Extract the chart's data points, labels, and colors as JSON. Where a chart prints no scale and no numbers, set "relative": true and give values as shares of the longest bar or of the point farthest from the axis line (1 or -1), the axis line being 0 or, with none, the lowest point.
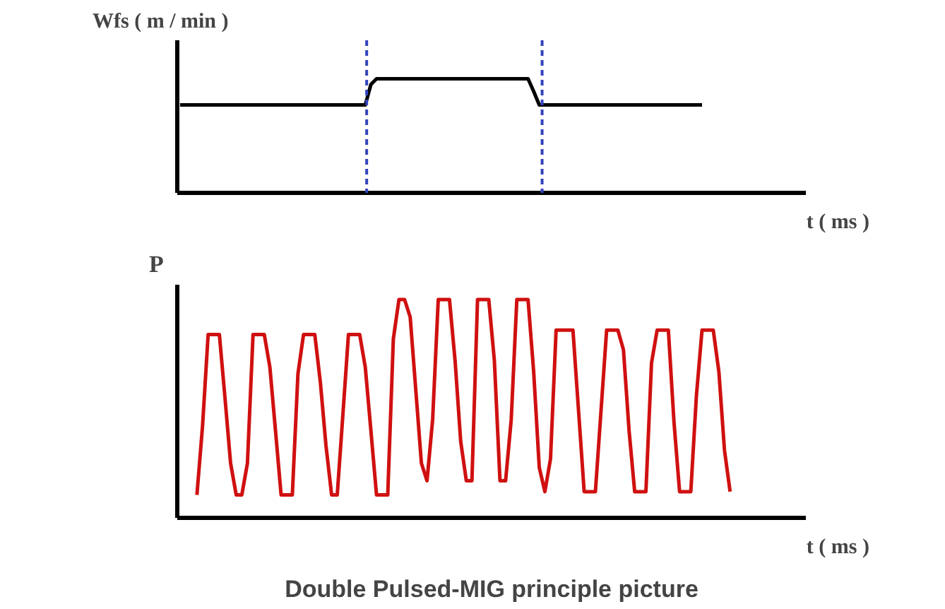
{
  "chart_data": [
    {
      "type": "line",
      "relative": true,
      "ylabel": "Wfs ( m / min )",
      "xlabel": "t ( ms )",
      "tick_labels": false,
      "categories": [
        null,
        null,
        null,
        null,
        null,
        null,
        null,
        null,
        null,
        null,
        null,
        null,
        null,
        null,
        null,
        null,
        null,
        null,
        null,
        null,
        null,
        null,
        null,
        null,
        null,
        null,
        null,
        null,
        null,
        null,
        null,
        null,
        null,
        null,
        null,
        null,
        null,
        null,
        null,
        null,
        null,
        null,
        null,
        null,
        null,
        null,
        null,
        null,
        null,
        null,
        null,
        null,
        null,
        null,
        null,
        null,
        null,
        null,
        null,
        null,
        null,
        null,
        null,
        null,
        null,
        null,
        null,
        null,
        null,
        null,
        null,
        null,
        null,
        null,
        null,
        null,
        null,
        null,
        null,
        null,
        null,
        null,
        null,
        null,
        null,
        null,
        null,
        null,
        null,
        null,
        null,
        null,
        null,
        null,
        null,
        null,
        null,
        null,
        null,
        null,
        null,
        null,
        null,
        null,
        null,
        null,
        null,
        null,
        null,
        null,
        null,
        null
      ],
      "series": [
        {
          "color": "#000000",
          "values": [
            0.77,
            0.77,
            0.77,
            0.77,
            0.77,
            0.77,
            0.77,
            0.77,
            0.77,
            0.77,
            0.77,
            0.77,
            0.77,
            0.77,
            0.77,
            0.77,
            0.77,
            0.77,
            0.77,
            0.77,
            0.77,
            0.77,
            0.77,
            0.77,
            0.77,
            0.77,
            0.77,
            0.77,
            0.77,
            0.77,
            0.77,
            0.77,
            0.77,
            0.77,
            0.95,
            1,
            1,
            1,
            1,
            1,
            1,
            1,
            1,
            1,
            1,
            1,
            1,
            1,
            1,
            1,
            1,
            1,
            1,
            1,
            1,
            1,
            1,
            1,
            1,
            1,
            1,
            1,
            1,
            0.89,
            0.77,
            0.77,
            0.77,
            0.77,
            0.77,
            0.77,
            0.77,
            0.77,
            0.77,
            0.77,
            0.77,
            0.77,
            0.77,
            0.77,
            0.77,
            0.77,
            0.77,
            0.77,
            0.77,
            0.77,
            0.77,
            0.77,
            0.77,
            0.77,
            0.77,
            0.77,
            0.77,
            0.77,
            0.77,
            0.77,
            null,
            null,
            null,
            null,
            null,
            null,
            null,
            null,
            null,
            null,
            null,
            null,
            null,
            null,
            null,
            null,
            null,
            null
          ]
        }
      ]
    },
    {
      "type": "line",
      "relative": true,
      "ylabel": "P",
      "xlabel": "t ( ms )",
      "tick_labels": false,
      "categories": [
        null,
        null,
        null,
        null,
        null,
        null,
        null,
        null,
        null,
        null,
        null,
        null,
        null,
        null,
        null,
        null,
        null,
        null,
        null,
        null,
        null,
        null,
        null,
        null,
        null,
        null,
        null,
        null,
        null,
        null,
        null,
        null,
        null,
        null,
        null,
        null,
        null,
        null,
        null,
        null,
        null,
        null,
        null,
        null,
        null,
        null,
        null,
        null,
        null,
        null,
        null,
        null,
        null,
        null,
        null,
        null,
        null,
        null,
        null,
        null,
        null,
        null,
        null,
        null,
        null,
        null,
        null,
        null,
        null,
        null,
        null,
        null,
        null,
        null,
        null,
        null,
        null,
        null,
        null,
        null,
        null,
        null,
        null,
        null,
        null,
        null,
        null,
        null,
        null,
        null,
        null,
        null,
        null,
        null,
        null,
        null,
        null,
        null,
        null,
        null,
        null,
        null,
        null,
        null,
        null,
        null,
        null,
        null,
        null,
        null,
        null,
        null
      ],
      "series": [
        {
          "color": "#d01010",
          "values": [
            null,
            null,
            null,
            0.105,
            0.42,
            0.84,
            0.84,
            0.84,
            0.55,
            0.25,
            0.105,
            0.105,
            0.25,
            0.84,
            0.84,
            0.84,
            0.69,
            0.4,
            0.105,
            0.105,
            0.105,
            0.66,
            0.84,
            0.84,
            0.84,
            0.62,
            0.33,
            0.105,
            0.105,
            0.47,
            0.84,
            0.84,
            0.84,
            0.69,
            0.4,
            0.105,
            0.105,
            0.105,
            0.82,
            1,
            1,
            0.92,
            0.585,
            0.25,
            0.17,
            0.45,
            1,
            1,
            1,
            0.72,
            0.35,
            0.17,
            0.17,
            1,
            1,
            1,
            0.72,
            0.17,
            0.17,
            0.45,
            1,
            1,
            1,
            0.67,
            0.23,
            0.12,
            0.27,
            0.86,
            0.86,
            0.86,
            0.86,
            0.49,
            0.12,
            0.12,
            0.12,
            0.49,
            0.86,
            0.86,
            0.86,
            0.77,
            0.4,
            0.12,
            0.12,
            0.12,
            0.71,
            0.86,
            0.86,
            0.86,
            0.44,
            0.12,
            0.12,
            0.12,
            0.56,
            0.86,
            0.86,
            0.86,
            0.67,
            0.31,
            0.12,
            null,
            null,
            null,
            null,
            null,
            null,
            null,
            null,
            null,
            null,
            null,
            null,
            null
          ]
        }
      ],
      "annotations": [
        "Double Pulsed-MIG principle picture"
      ]
    }
  ]
}
